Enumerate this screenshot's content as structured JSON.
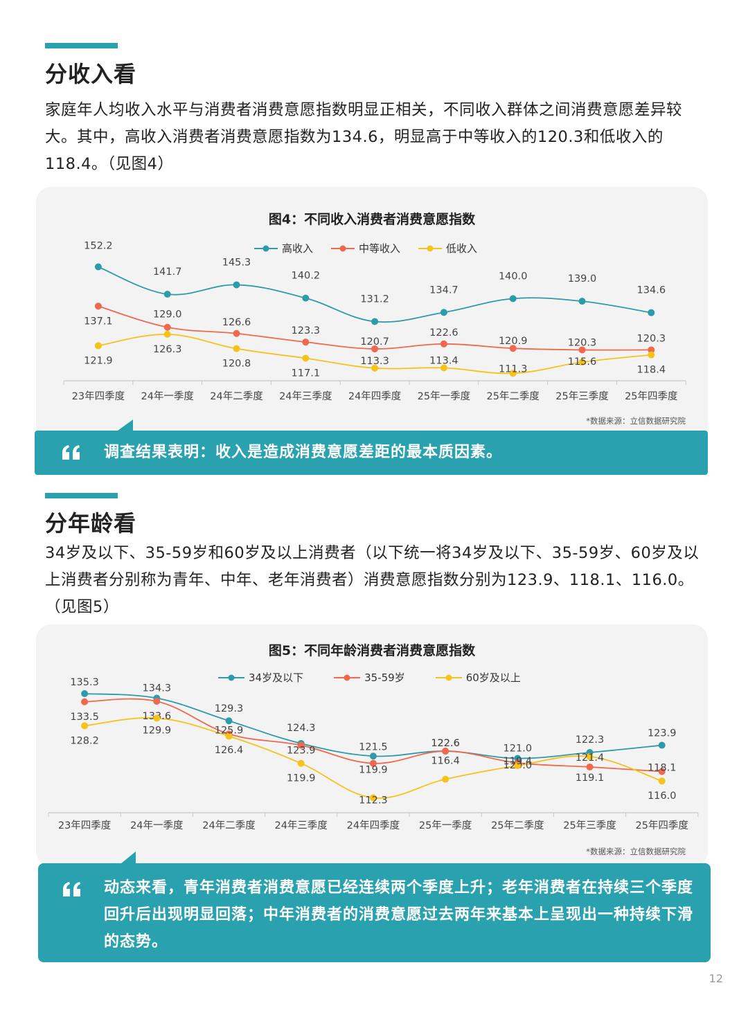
{
  "colors": {
    "accent": "#2aa1ae",
    "series1": "#2d9baa",
    "series2": "#f0684e",
    "series3": "#f6c31a",
    "quote_bg": "#2aa1ae"
  },
  "section1": {
    "title": "分收入看",
    "paragraph": "家庭年人均收入水平与消费者消费意愿指数明显正相关，不同收入群体之间消费意愿差异较大。其中，高收入消费者消费意愿指数为134.6，明显高于中等收入的120.3和低收入的118.4。（见图4）",
    "quote_icon": "quote-icon",
    "quote": "调查结果表明：收入是造成消费意愿差距的最本质因素。"
  },
  "section2": {
    "title": "分年龄看",
    "paragraph": "34岁及以下、35-59岁和60岁及以上消费者（以下统一将34岁及以下、35-59岁、60岁及以上消费者分别称为青年、中年、老年消费者）消费意愿指数分别为123.9、118.1、116.0。（见图5）",
    "quote_icon": "quote-icon",
    "quote": "动态来看，青年消费者消费意愿已经连续两个季度上升；老年消费者在持续三个季度回升后出现明显回落；中年消费者的消费意愿过去两年来基本上呈现出一种持续下滑的态势。"
  },
  "chart_data": [
    {
      "type": "line",
      "title": "图4：不同收入消费者消费意愿指数",
      "categories": [
        "23年四季度",
        "24年一季度",
        "24年二季度",
        "24年三季度",
        "24年四季度",
        "25年一季度",
        "25年二季度",
        "25年三季度",
        "25年四季度"
      ],
      "series": [
        {
          "name": "高收入",
          "values": [
            152.2,
            141.7,
            145.3,
            140.2,
            131.2,
            134.7,
            140.0,
            139.0,
            134.6
          ]
        },
        {
          "name": "中等收入",
          "values": [
            137.1,
            129.0,
            126.6,
            123.3,
            120.7,
            122.6,
            120.9,
            120.3,
            120.3
          ]
        },
        {
          "name": "低收入",
          "values": [
            121.9,
            126.3,
            120.8,
            117.1,
            113.3,
            113.4,
            111.3,
            115.6,
            118.4
          ]
        }
      ],
      "legend_position": "top-center",
      "source": "*数据来源：立信数据研究院"
    },
    {
      "type": "line",
      "title": "图5：不同年龄消费者消费意愿指数",
      "categories": [
        "23年四季度",
        "24年一季度",
        "24年二季度",
        "24年三季度",
        "24年四季度",
        "25年一季度",
        "25年二季度",
        "25年三季度",
        "25年四季度"
      ],
      "series": [
        {
          "name": "34岁及以下",
          "values": [
            135.3,
            134.3,
            129.3,
            124.3,
            121.5,
            122.6,
            121.0,
            122.3,
            123.9
          ]
        },
        {
          "name": "35-59岁",
          "values": [
            133.5,
            133.6,
            126.4,
            123.9,
            119.9,
            122.6,
            120.0,
            119.1,
            118.1
          ]
        },
        {
          "name": "60岁及以上",
          "values": [
            128.2,
            129.9,
            125.9,
            119.9,
            112.3,
            116.4,
            119.4,
            121.4,
            116.0
          ]
        }
      ],
      "legend_position": "top-center",
      "source": "*数据来源：立信数据研究院"
    }
  ],
  "page_number": "12"
}
